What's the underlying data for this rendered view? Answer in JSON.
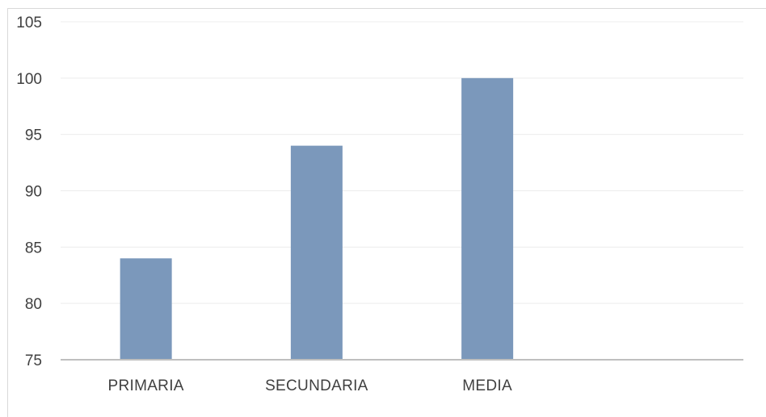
{
  "chart_data": {
    "type": "bar",
    "categories": [
      "PRIMARIA",
      "SECUNDARIA",
      "MEDIA",
      ""
    ],
    "values": [
      84,
      94,
      100,
      null
    ],
    "ylim": [
      75,
      105
    ],
    "yticks": [
      75,
      80,
      85,
      90,
      95,
      100,
      105
    ],
    "grid": true,
    "bar_color": "#7b98bb",
    "grid_color": "#ececec",
    "axis_color": "#bfbfbf",
    "text_color": "#404040"
  }
}
